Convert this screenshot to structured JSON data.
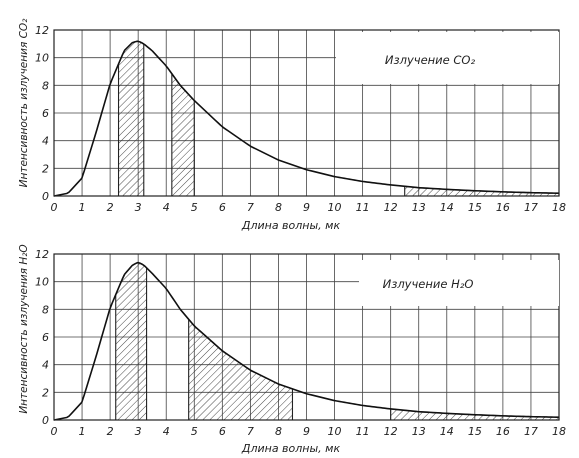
{
  "chart_data": [
    {
      "id": "co2",
      "type": "line",
      "ylabel": "Интенсивность излучения CO₂",
      "xlabel": "Длина волны, мк",
      "legend": "Излучение CO₂",
      "legend_position": "top-right",
      "grid": true,
      "xlim": [
        0,
        18
      ],
      "ylim": [
        0,
        12
      ],
      "x_ticks": [
        "0",
        "1",
        "2",
        "3",
        "4",
        "5",
        "6",
        "7",
        "8",
        "9",
        "10",
        "11",
        "12",
        "13",
        "14",
        "15",
        "16",
        "17",
        "18"
      ],
      "y_ticks": [
        "0",
        "2",
        "4",
        "6",
        "8",
        "10",
        "12"
      ],
      "series": [
        {
          "x": [
            0,
            0.5,
            1.0,
            1.5,
            2.0,
            2.5,
            2.8,
            3.0,
            3.2,
            3.5,
            4.0,
            4.5,
            5.0,
            6.0,
            7.0,
            8.0,
            9.0,
            10.0,
            11.0,
            12.0,
            13.0,
            14.0,
            15.0,
            16.0,
            17.0,
            18.0
          ],
          "y": [
            0,
            0.2,
            1.3,
            4.6,
            8.1,
            10.5,
            11.1,
            11.2,
            11.0,
            10.5,
            9.4,
            8.0,
            6.9,
            5.0,
            3.6,
            2.6,
            1.9,
            1.4,
            1.05,
            0.8,
            0.6,
            0.48,
            0.38,
            0.3,
            0.24,
            0.2
          ]
        }
      ],
      "bands": [
        [
          2.3,
          3.2
        ],
        [
          4.2,
          5.0
        ],
        [
          12.5,
          18.0
        ]
      ]
    },
    {
      "id": "h2o",
      "type": "line",
      "ylabel": "Интенсивность излучения H₂O",
      "xlabel": "Длина волны, мк",
      "legend": "Излучение H₂O",
      "legend_position": "top-right",
      "grid": true,
      "xlim": [
        0,
        18
      ],
      "ylim": [
        0,
        12
      ],
      "x_ticks": [
        "0",
        "1",
        "2",
        "3",
        "4",
        "5",
        "6",
        "7",
        "8",
        "9",
        "10",
        "11",
        "12",
        "13",
        "14",
        "15",
        "16",
        "17",
        "18"
      ],
      "y_ticks": [
        "0",
        "2",
        "4",
        "6",
        "8",
        "10",
        "12"
      ],
      "series": [
        {
          "x": [
            0,
            0.5,
            1.0,
            1.5,
            2.0,
            2.5,
            2.8,
            3.0,
            3.2,
            3.5,
            4.0,
            4.5,
            5.0,
            6.0,
            7.0,
            8.0,
            9.0,
            10.0,
            11.0,
            12.0,
            13.0,
            14.0,
            15.0,
            16.0,
            17.0,
            18.0
          ],
          "y": [
            0,
            0.2,
            1.3,
            4.6,
            8.1,
            10.5,
            11.2,
            11.4,
            11.2,
            10.6,
            9.5,
            8.0,
            6.8,
            5.0,
            3.6,
            2.6,
            1.9,
            1.4,
            1.05,
            0.8,
            0.6,
            0.48,
            0.38,
            0.3,
            0.24,
            0.2
          ]
        }
      ],
      "bands": [
        [
          2.2,
          3.3
        ],
        [
          4.8,
          8.5
        ],
        [
          12.0,
          18.0
        ]
      ]
    }
  ]
}
